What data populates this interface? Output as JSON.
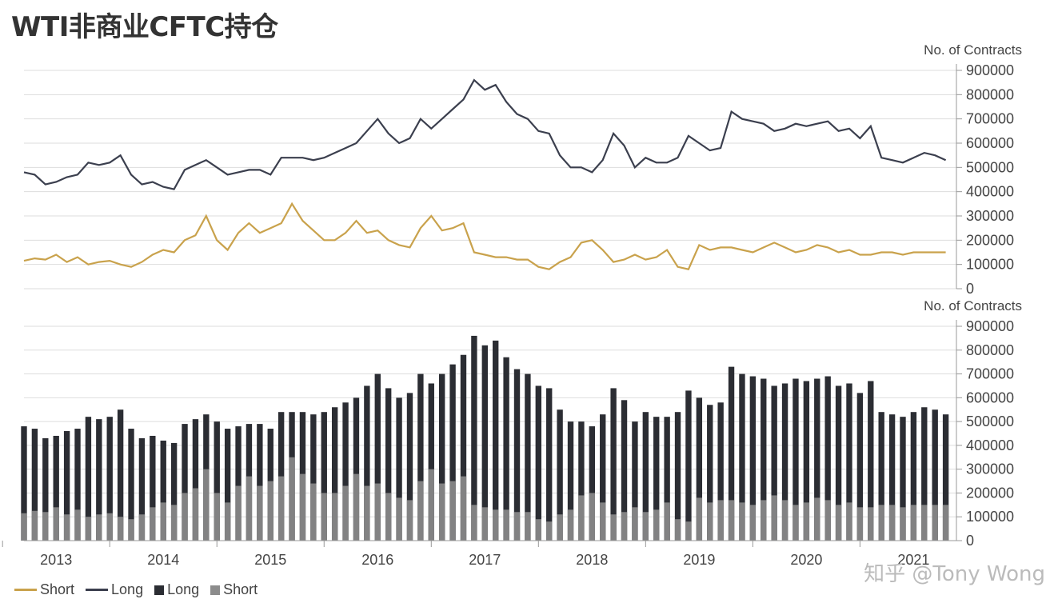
{
  "title": "WTI非商业CFTC持仓",
  "watermark": "知乎 @Tony Wong",
  "colors": {
    "long": "#3b3f4e",
    "short": "#c9a24c",
    "bar_long": "#2b2d33",
    "bar_short": "#8c8c8c",
    "grid": "#dddddd"
  },
  "legend": [
    {
      "label": "Short",
      "kind": "line",
      "color": "#c9a24c"
    },
    {
      "label": "Long",
      "kind": "line",
      "color": "#3b3f4e"
    },
    {
      "label": "Long",
      "kind": "box",
      "color": "#2b2d33"
    },
    {
      "label": "Short",
      "kind": "box",
      "color": "#8c8c8c"
    }
  ],
  "chart_data": [
    {
      "type": "line",
      "ylabel": "No. of Contracts",
      "ylim": [
        0,
        900000
      ],
      "yticks": [
        0,
        100000,
        200000,
        300000,
        400000,
        500000,
        600000,
        700000,
        800000,
        900000
      ],
      "x_ticks": [
        "2013",
        "2014",
        "2015",
        "2016",
        "2017",
        "2018",
        "2019",
        "2020",
        "2021"
      ],
      "xlim": [
        2012.7,
        2021.4
      ],
      "x": [
        2012.7,
        2012.8,
        2012.9,
        2013.0,
        2013.1,
        2013.2,
        2013.3,
        2013.4,
        2013.5,
        2013.6,
        2013.7,
        2013.8,
        2013.9,
        2014.0,
        2014.1,
        2014.2,
        2014.3,
        2014.4,
        2014.5,
        2014.6,
        2014.7,
        2014.8,
        2014.9,
        2015.0,
        2015.1,
        2015.2,
        2015.3,
        2015.4,
        2015.5,
        2015.6,
        2015.7,
        2015.8,
        2015.9,
        2016.0,
        2016.1,
        2016.2,
        2016.3,
        2016.4,
        2016.5,
        2016.6,
        2016.7,
        2016.8,
        2016.9,
        2017.0,
        2017.1,
        2017.2,
        2017.3,
        2017.4,
        2017.5,
        2017.6,
        2017.7,
        2017.8,
        2017.9,
        2018.0,
        2018.1,
        2018.2,
        2018.3,
        2018.4,
        2018.5,
        2018.6,
        2018.7,
        2018.8,
        2018.9,
        2019.0,
        2019.1,
        2019.2,
        2019.3,
        2019.4,
        2019.5,
        2019.6,
        2019.7,
        2019.8,
        2019.9,
        2020.0,
        2020.1,
        2020.2,
        2020.3,
        2020.4,
        2020.5,
        2020.6,
        2020.7,
        2020.8,
        2020.9,
        2021.0,
        2021.1,
        2021.2,
        2021.3
      ],
      "series": [
        {
          "name": "Long",
          "values": [
            480000,
            470000,
            430000,
            440000,
            460000,
            470000,
            520000,
            510000,
            520000,
            550000,
            470000,
            430000,
            440000,
            420000,
            410000,
            490000,
            510000,
            530000,
            500000,
            470000,
            480000,
            490000,
            490000,
            470000,
            540000,
            540000,
            540000,
            530000,
            540000,
            560000,
            580000,
            600000,
            650000,
            700000,
            640000,
            600000,
            620000,
            700000,
            660000,
            700000,
            740000,
            780000,
            860000,
            820000,
            840000,
            770000,
            720000,
            700000,
            650000,
            640000,
            550000,
            500000,
            500000,
            480000,
            530000,
            640000,
            590000,
            500000,
            540000,
            520000,
            520000,
            540000,
            630000,
            600000,
            570000,
            580000,
            730000,
            700000,
            690000,
            680000,
            650000,
            660000,
            680000,
            670000,
            680000,
            690000,
            650000,
            660000,
            620000,
            670000,
            540000,
            530000,
            520000,
            540000,
            560000,
            550000,
            530000
          ]
        },
        {
          "name": "Short",
          "values": [
            115000,
            125000,
            120000,
            140000,
            110000,
            130000,
            100000,
            110000,
            115000,
            100000,
            90000,
            110000,
            140000,
            160000,
            150000,
            200000,
            220000,
            300000,
            200000,
            160000,
            230000,
            270000,
            230000,
            250000,
            270000,
            350000,
            280000,
            240000,
            200000,
            200000,
            230000,
            280000,
            230000,
            240000,
            200000,
            180000,
            170000,
            250000,
            300000,
            240000,
            250000,
            270000,
            150000,
            140000,
            130000,
            130000,
            120000,
            120000,
            90000,
            80000,
            110000,
            130000,
            190000,
            200000,
            160000,
            110000,
            120000,
            140000,
            120000,
            130000,
            160000,
            90000,
            80000,
            180000,
            160000,
            170000,
            170000,
            160000,
            150000,
            170000,
            190000,
            170000,
            150000,
            160000,
            180000,
            170000,
            150000,
            160000,
            140000,
            140000,
            150000,
            150000,
            140000,
            150000,
            150000,
            150000,
            150000
          ]
        }
      ]
    },
    {
      "type": "bar",
      "ylabel": "No. of Contracts",
      "ylim": [
        0,
        900000
      ],
      "yticks": [
        0,
        100000,
        200000,
        300000,
        400000,
        500000,
        600000,
        700000,
        800000,
        900000
      ],
      "x_ticks": [
        "2013",
        "2014",
        "2015",
        "2016",
        "2017",
        "2018",
        "2019",
        "2020",
        "2021"
      ],
      "series": [
        {
          "name": "Long",
          "ref": "long_series"
        },
        {
          "name": "Short",
          "ref": "short_series"
        }
      ]
    }
  ]
}
